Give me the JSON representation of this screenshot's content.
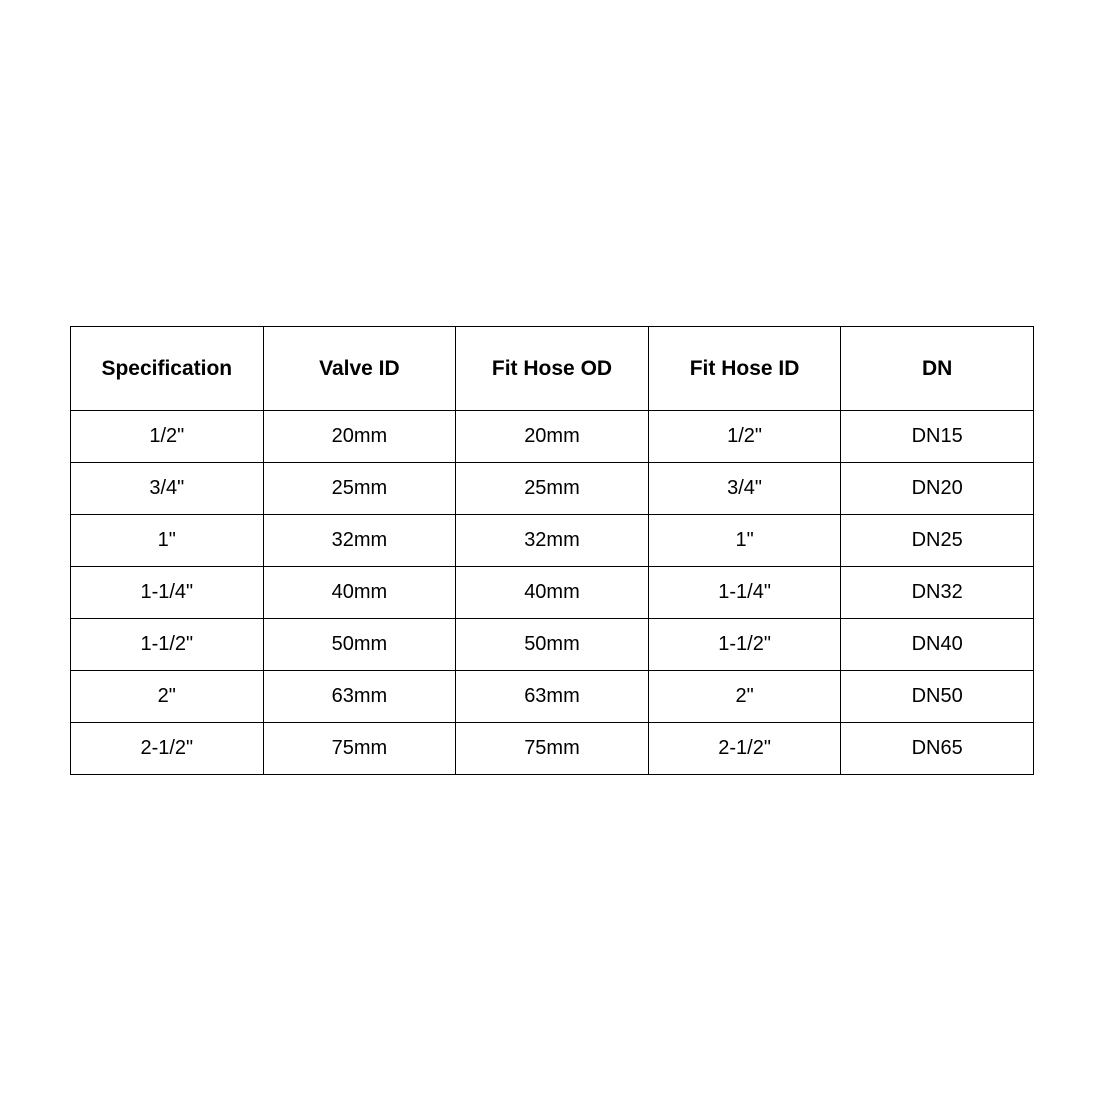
{
  "table": {
    "headers": [
      "Specification",
      "Valve ID",
      "Fit Hose OD",
      "Fit Hose ID",
      "DN"
    ],
    "rows": [
      [
        "1/2\"",
        "20mm",
        "20mm",
        "1/2\"",
        "DN15"
      ],
      [
        "3/4\"",
        "25mm",
        "25mm",
        "3/4\"",
        "DN20"
      ],
      [
        "1\"",
        "32mm",
        "32mm",
        "1\"",
        "DN25"
      ],
      [
        "1-1/4\"",
        "40mm",
        "40mm",
        "1-1/4\"",
        "DN32"
      ],
      [
        "1-1/2\"",
        "50mm",
        "50mm",
        "1-1/2\"",
        "DN40"
      ],
      [
        "2\"",
        "63mm",
        "63mm",
        "2\"",
        "DN50"
      ],
      [
        "2-1/2\"",
        "75mm",
        "75mm",
        "2-1/2\"",
        "DN65"
      ]
    ]
  }
}
